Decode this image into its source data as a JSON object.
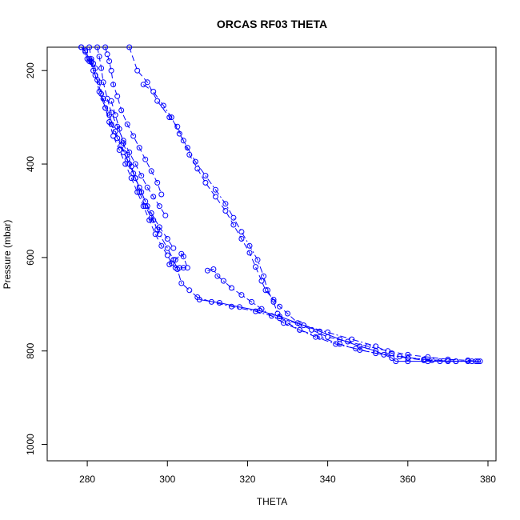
{
  "chart_data": {
    "type": "line",
    "title": "ORCAS RF03 THETA",
    "xlabel": "THETA",
    "ylabel": "Pressure (mbar)",
    "xlim": [
      270,
      382
    ],
    "ylim": [
      1035,
      150
    ],
    "y_reversed": true,
    "x_ticks": [
      280,
      300,
      320,
      340,
      360,
      380
    ],
    "y_ticks": [
      200,
      400,
      600,
      800,
      1000
    ],
    "grid": false,
    "legend": "none",
    "color": "#0000ff",
    "markers": "open-circle",
    "series": [
      {
        "line_style": "dashed",
        "points": [
          [
            278.5,
            150
          ],
          [
            279.5,
            157
          ],
          [
            280.5,
            175
          ],
          [
            281.5,
            200
          ],
          [
            282.5,
            220
          ],
          [
            283.5,
            250
          ],
          [
            284.5,
            280
          ],
          [
            285.5,
            310
          ],
          [
            286.5,
            340
          ],
          [
            288,
            370
          ],
          [
            289.5,
            400
          ],
          [
            291,
            430
          ],
          [
            292.5,
            460
          ],
          [
            294,
            490
          ],
          [
            295.5,
            520
          ],
          [
            297,
            550
          ],
          [
            298.5,
            575
          ],
          [
            300,
            595
          ],
          [
            301,
            612
          ],
          [
            302,
            622
          ],
          [
            303,
            622
          ],
          [
            304,
            622
          ],
          [
            305,
            622
          ],
          [
            304,
            598
          ],
          [
            303.5,
            592
          ],
          [
            302,
            605
          ],
          [
            300.5,
            615
          ]
        ]
      },
      {
        "line_style": "dashed",
        "points": [
          [
            280.5,
            150
          ],
          [
            281,
            175
          ],
          [
            282,
            195
          ],
          [
            283,
            225
          ],
          [
            284,
            260
          ],
          [
            285.5,
            295
          ],
          [
            287,
            330
          ],
          [
            288.5,
            360
          ],
          [
            290,
            390
          ],
          [
            291.5,
            420
          ],
          [
            293,
            450
          ],
          [
            294.5,
            480
          ],
          [
            296,
            505
          ],
          [
            298,
            535
          ],
          [
            300,
            560
          ],
          [
            301.5,
            580
          ]
        ]
      },
      {
        "line_style": "dashed",
        "points": [
          [
            282.5,
            150
          ],
          [
            283,
            170
          ],
          [
            283.5,
            195
          ],
          [
            284,
            225
          ],
          [
            285,
            260
          ],
          [
            286,
            290
          ],
          [
            287.5,
            320
          ],
          [
            289,
            350
          ],
          [
            290.5,
            375
          ],
          [
            292,
            400
          ],
          [
            293.5,
            425
          ],
          [
            295,
            450
          ],
          [
            296.5,
            470
          ],
          [
            298,
            490
          ],
          [
            299.5,
            510
          ]
        ]
      },
      {
        "line_style": "dashed",
        "points": [
          [
            284.5,
            150
          ],
          [
            285,
            165
          ],
          [
            285.5,
            180
          ],
          [
            286,
            200
          ],
          [
            286.5,
            230
          ],
          [
            287.5,
            255
          ],
          [
            288.5,
            285
          ],
          [
            290,
            315
          ],
          [
            291.5,
            340
          ],
          [
            293,
            365
          ],
          [
            294.5,
            390
          ],
          [
            296,
            415
          ],
          [
            297.5,
            440
          ],
          [
            298.5,
            465
          ]
        ]
      },
      {
        "line_style": "dashed",
        "points": [
          [
            286,
            265
          ],
          [
            287,
            295
          ],
          [
            288,
            325
          ],
          [
            289,
            355
          ],
          [
            290,
            380
          ],
          [
            291,
            405
          ],
          [
            292,
            430
          ],
          [
            293,
            460
          ],
          [
            294.5,
            490
          ],
          [
            296,
            515
          ],
          [
            297.5,
            540
          ]
        ]
      },
      {
        "line_style": "dashed",
        "points": [
          [
            290.5,
            150
          ],
          [
            292.5,
            200
          ],
          [
            295,
            225
          ],
          [
            297.5,
            265
          ],
          [
            300.5,
            300
          ],
          [
            302.5,
            320
          ],
          [
            304,
            350
          ],
          [
            305.5,
            380
          ],
          [
            307.5,
            410
          ],
          [
            309.5,
            440
          ],
          [
            312,
            470
          ],
          [
            314.5,
            500
          ],
          [
            316.5,
            530
          ],
          [
            318.5,
            560
          ],
          [
            320.5,
            590
          ],
          [
            322,
            620
          ],
          [
            323.5,
            650
          ],
          [
            324.5,
            670
          ],
          [
            326.5,
            690
          ],
          [
            328,
            705
          ],
          [
            330,
            720
          ],
          [
            332.5,
            740
          ],
          [
            336,
            755
          ],
          [
            340,
            770
          ],
          [
            345,
            780
          ],
          [
            350,
            790
          ],
          [
            355,
            800
          ],
          [
            360,
            808
          ],
          [
            365,
            813
          ],
          [
            370,
            818
          ],
          [
            375,
            820
          ],
          [
            377.5,
            822
          ]
        ]
      },
      {
        "line_style": "dash-dot",
        "points": [
          [
            294,
            230
          ],
          [
            296.5,
            245
          ],
          [
            299,
            275
          ],
          [
            301,
            300
          ],
          [
            303,
            335
          ],
          [
            305,
            365
          ],
          [
            307,
            395
          ],
          [
            309.5,
            425
          ],
          [
            312,
            455
          ],
          [
            314.5,
            485
          ],
          [
            316.5,
            515
          ],
          [
            318.5,
            545
          ],
          [
            320.5,
            575
          ],
          [
            322.5,
            605
          ],
          [
            324,
            640
          ],
          [
            325,
            670
          ],
          [
            326.5,
            695
          ],
          [
            327.5,
            720
          ],
          [
            330,
            740
          ],
          [
            333,
            755
          ],
          [
            337,
            770
          ],
          [
            342,
            785
          ],
          [
            347,
            795
          ],
          [
            352,
            805
          ],
          [
            358,
            812
          ],
          [
            364,
            818
          ],
          [
            370,
            821
          ],
          [
            376,
            822
          ]
        ]
      },
      {
        "line_style": "dash-dot",
        "points": [
          [
            310,
            628
          ],
          [
            311.5,
            625
          ],
          [
            312.5,
            640
          ],
          [
            314,
            650
          ],
          [
            316,
            665
          ],
          [
            318.5,
            680
          ],
          [
            321,
            695
          ],
          [
            323.5,
            710
          ],
          [
            326,
            725
          ],
          [
            329,
            740
          ],
          [
            333,
            755
          ],
          [
            338,
            770
          ],
          [
            343,
            785
          ],
          [
            348,
            798
          ],
          [
            354,
            808
          ],
          [
            360,
            815
          ],
          [
            366,
            820
          ],
          [
            372,
            822
          ],
          [
            377,
            822
          ]
        ]
      },
      {
        "line_style": "dash-dot",
        "points": [
          [
            281,
            180
          ],
          [
            282,
            210
          ],
          [
            283,
            245
          ],
          [
            284.5,
            280
          ],
          [
            286,
            315
          ],
          [
            287.5,
            345
          ],
          [
            289,
            375
          ],
          [
            290.5,
            400
          ],
          [
            292,
            430
          ],
          [
            293.5,
            460
          ],
          [
            295,
            490
          ],
          [
            296.5,
            520
          ],
          [
            298,
            550
          ],
          [
            300,
            580
          ],
          [
            301.5,
            605
          ],
          [
            302.5,
            625
          ],
          [
            303.5,
            655
          ],
          [
            305.5,
            670
          ],
          [
            307.5,
            685
          ],
          [
            311,
            695
          ],
          [
            316,
            705
          ],
          [
            322,
            715
          ],
          [
            328,
            730
          ],
          [
            334,
            745
          ],
          [
            340,
            760
          ],
          [
            346,
            775
          ],
          [
            352,
            790
          ],
          [
            356,
            805
          ],
          [
            360,
            815
          ],
          [
            364,
            820
          ],
          [
            368,
            822
          ],
          [
            372,
            822
          ]
        ]
      },
      {
        "line_style": "solid",
        "points": [
          [
            308,
            690
          ],
          [
            313,
            697
          ],
          [
            318,
            706
          ],
          [
            323,
            714
          ],
          [
            328,
            726
          ],
          [
            333,
            742
          ],
          [
            338,
            758
          ],
          [
            343,
            775
          ],
          [
            348,
            790
          ],
          [
            352,
            800
          ],
          [
            356,
            815
          ],
          [
            357,
            822
          ],
          [
            360,
            822
          ],
          [
            365,
            822
          ],
          [
            370,
            822
          ],
          [
            375,
            822
          ],
          [
            378,
            822
          ]
        ]
      },
      {
        "line_style": "solid",
        "points": [
          [
            278.5,
            150
          ],
          [
            279.5,
            160
          ],
          [
            280,
            175
          ],
          [
            280.5,
            180
          ],
          [
            281,
            182
          ],
          [
            281.5,
            185
          ]
        ]
      }
    ]
  }
}
